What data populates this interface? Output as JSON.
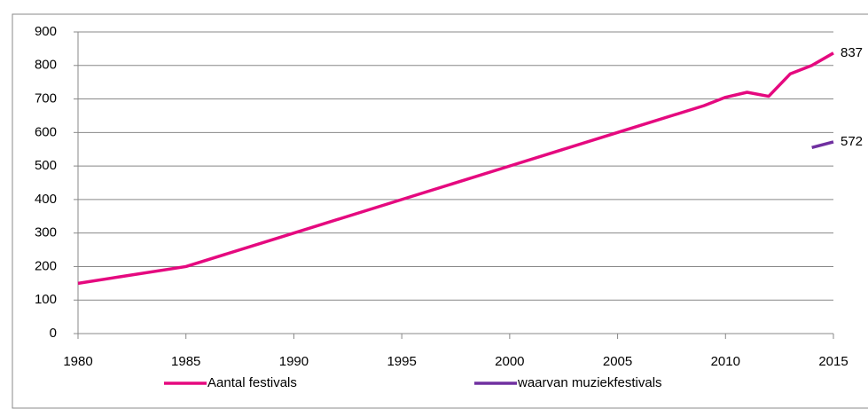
{
  "chart_data": {
    "type": "line",
    "x": [
      1980,
      1982,
      1985,
      1990,
      1995,
      2000,
      2005,
      2009,
      2010,
      2011,
      2012,
      2013,
      2014,
      2015
    ],
    "series": [
      {
        "name": "Aantal festivals",
        "color": "#e5097f",
        "values": [
          150,
          170,
          200,
          300,
          400,
          500,
          600,
          680,
          705,
          720,
          708,
          775,
          800,
          837
        ]
      },
      {
        "name": "waarvan muziekfestivals",
        "color": "#7030a0",
        "values": [
          null,
          null,
          null,
          null,
          null,
          null,
          null,
          null,
          null,
          null,
          null,
          null,
          555,
          572
        ]
      }
    ],
    "xlim": [
      1980,
      2015
    ],
    "xticks": [
      1980,
      1985,
      1990,
      1995,
      2000,
      2005,
      2010,
      2015
    ],
    "ylim": [
      0,
      900
    ],
    "yticks": [
      0,
      100,
      200,
      300,
      400,
      500,
      600,
      700,
      800,
      900
    ],
    "grid": true,
    "legend": "bottom"
  }
}
